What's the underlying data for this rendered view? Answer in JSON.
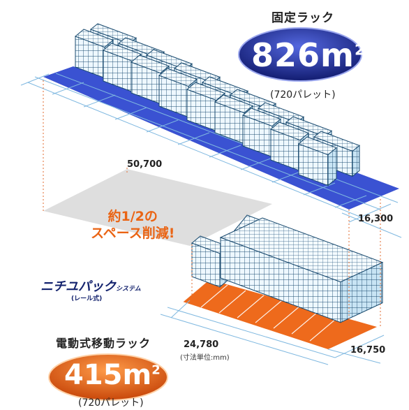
{
  "fixed_rack": {
    "title": "固定ラック",
    "area_value": "826",
    "area_unit": "m",
    "area_sup": "2",
    "pallets": "(720パレット)",
    "badge_color": "#1d2a8c",
    "floor_color": "#3a52d2"
  },
  "mobile_rack": {
    "title": "電動式移動ラック",
    "area_value": "415",
    "area_unit": "m",
    "area_sup": "2",
    "pallets": "(720パレット)",
    "badge_color": "#e8620f",
    "floor_color": "#ee6a1c"
  },
  "dimensions": {
    "fixed_length": "50,700",
    "fixed_depth": "16,300",
    "mobile_length": "24,780",
    "mobile_depth": "16,750",
    "unit_note": "(寸法単位:mm)"
  },
  "callout": {
    "line1": "約1/2の",
    "line2": "スペース削減!"
  },
  "brand": {
    "name": "ニチユパック",
    "system": "システム",
    "sub": "(レール式)"
  }
}
